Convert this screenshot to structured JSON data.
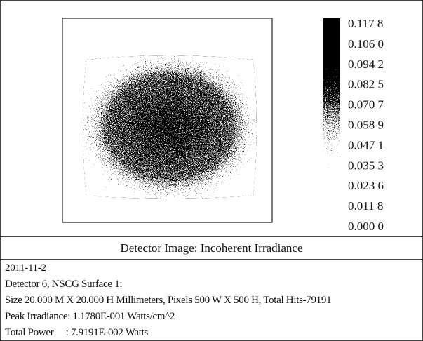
{
  "colorbar": {
    "labels": [
      "0.117 8",
      "0.106 0",
      "0.094 2",
      "0.082 5",
      "0.070 7",
      "0.058 9",
      "0.047 1",
      "0.035 3",
      "0.023 6",
      "0.011 8",
      "0.000 0"
    ]
  },
  "caption": "Detector Image: Incoherent Irradiance",
  "info": {
    "lines": [
      "2011-11-2",
      "Detector 6, NSCG Surface 1:",
      "Size 20.000 M X 20.000 H Millimeters, Pixels 500 W X 500 H, Total Hits-79191",
      "Peak Irradiance: 1.1780E-001 Watts/cm^2",
      "Total Power     : 7.9191E-002 Watts"
    ]
  }
}
